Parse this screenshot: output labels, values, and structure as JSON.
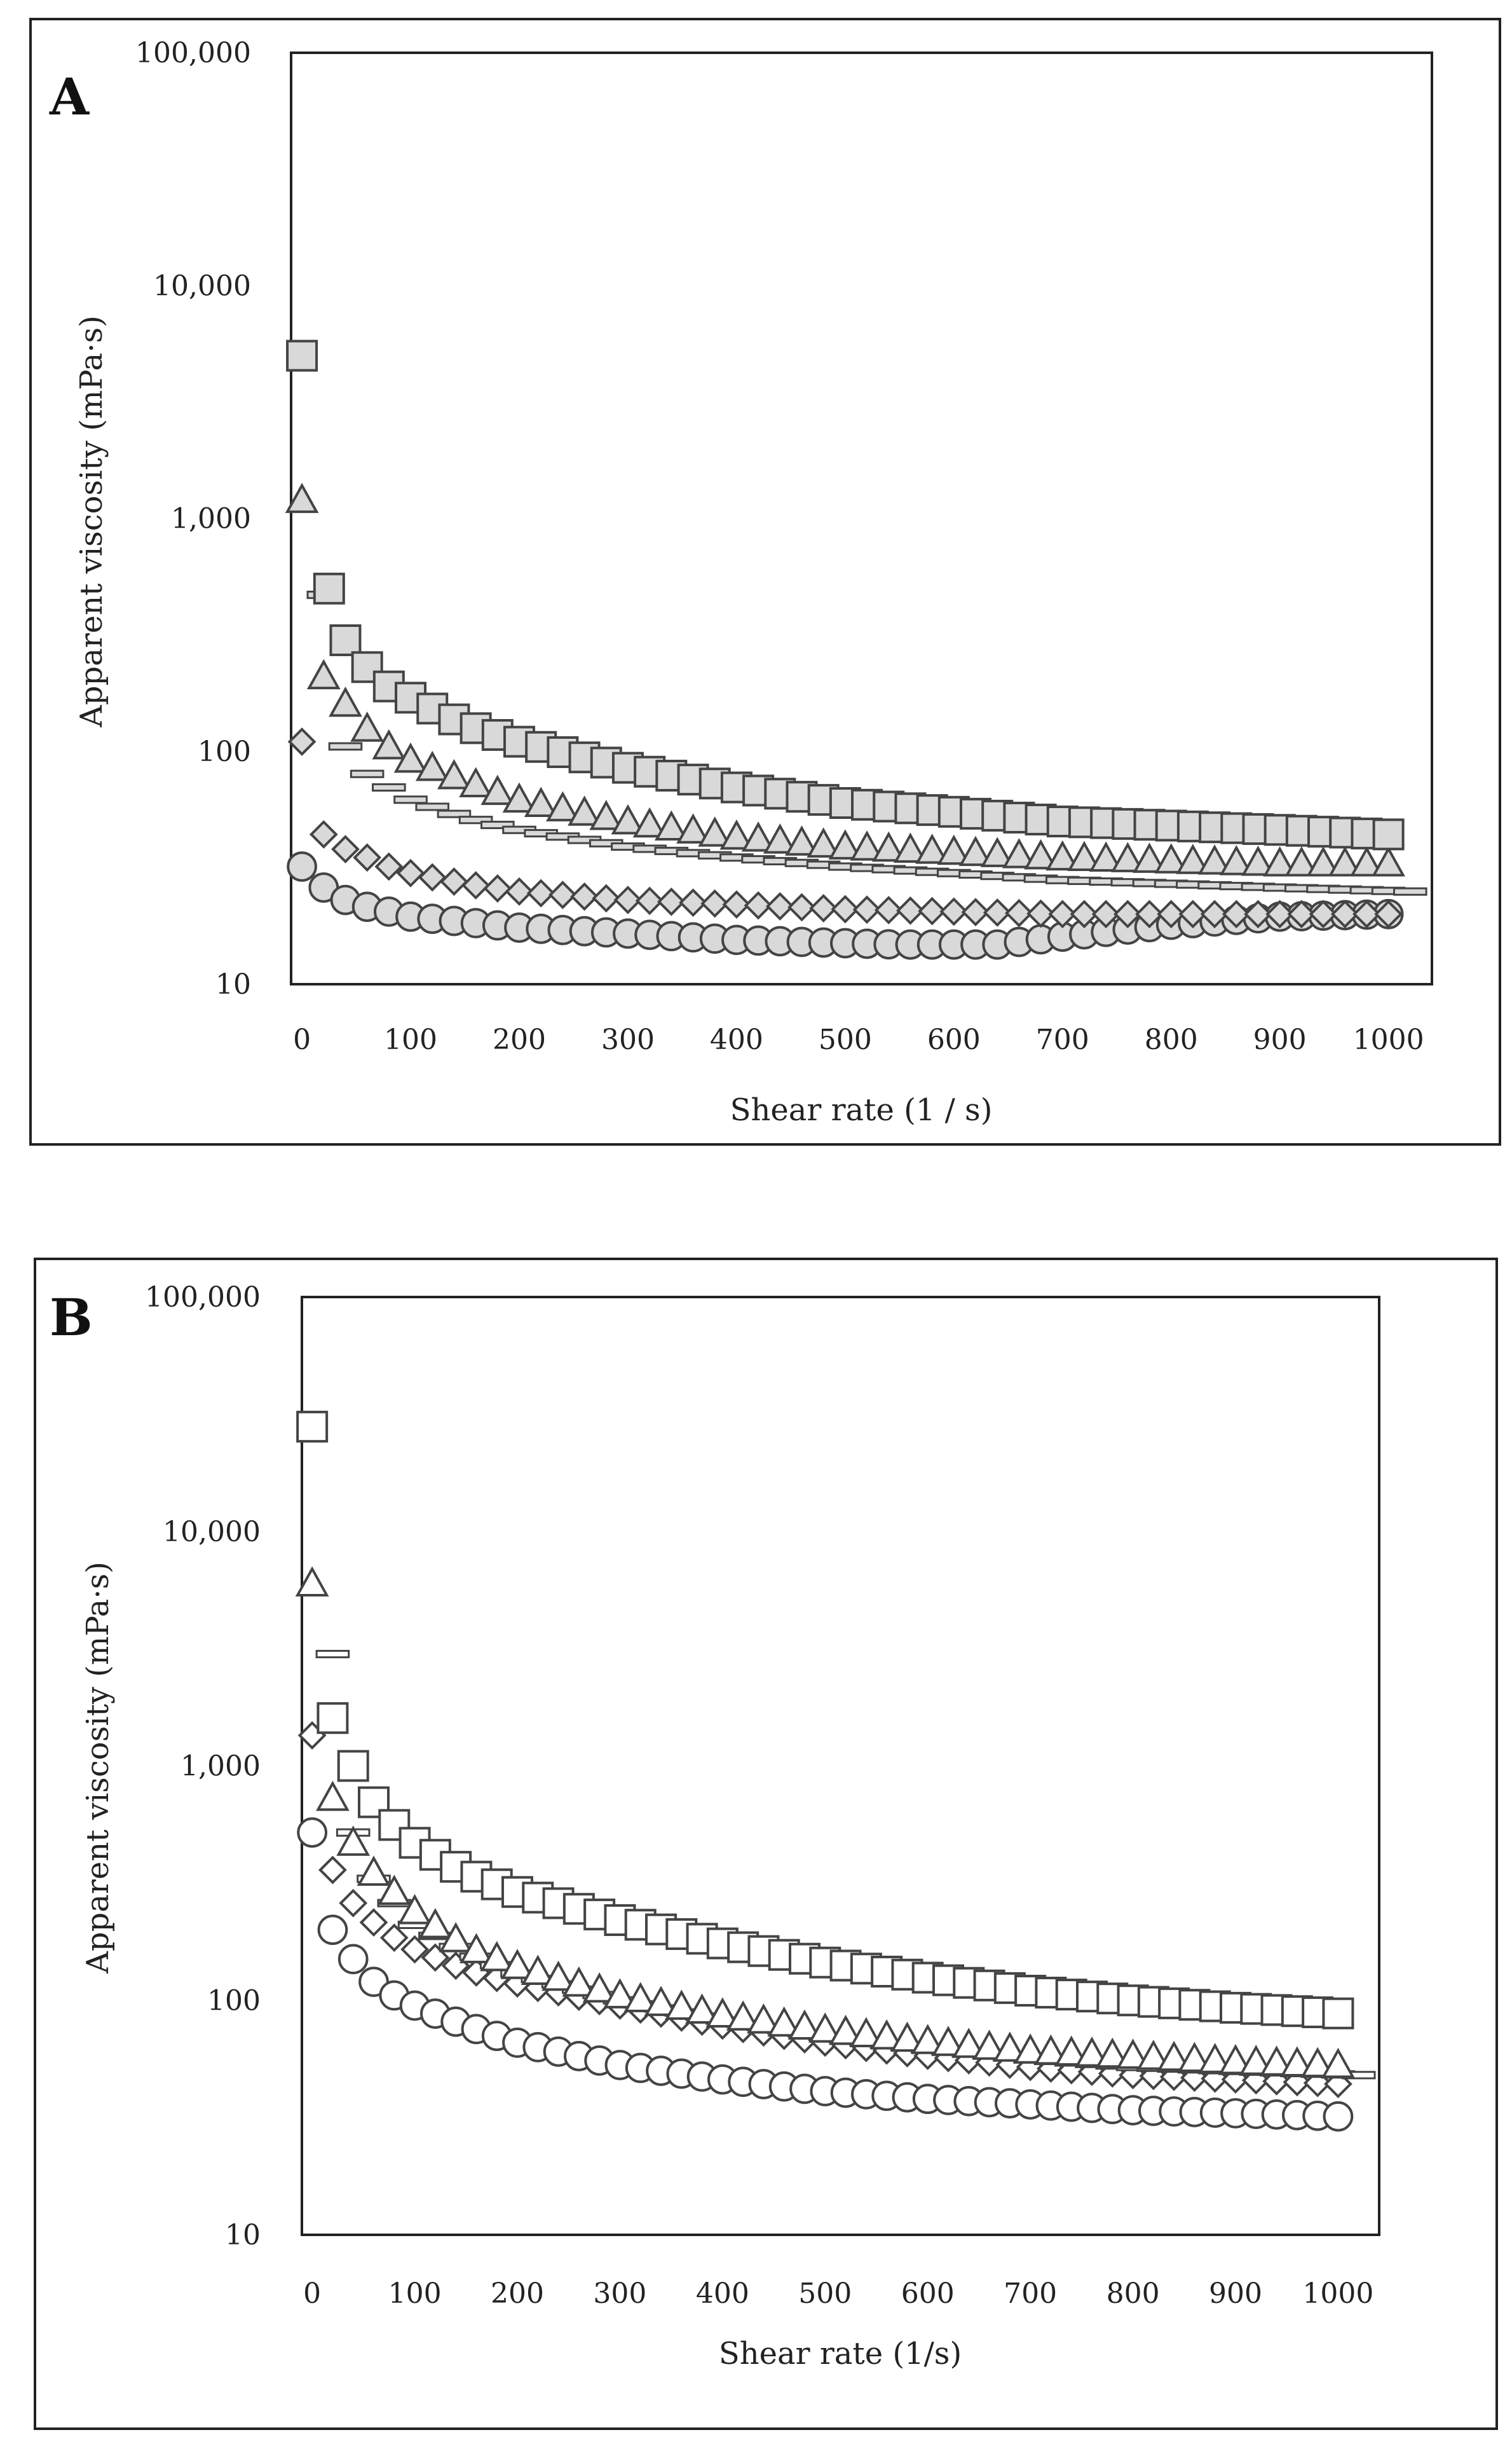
{
  "chart_data": [
    {
      "type": "scatter",
      "panel_label": "A",
      "xlabel": "Shear rate (1 / s)",
      "ylabel": "Apparent viscosity (mPa·s)",
      "y_scale": "log",
      "xlim": [
        -10,
        1040
      ],
      "ylim": [
        10,
        100000
      ],
      "x_ticks": [
        "0",
        "100",
        "200",
        "300",
        "400",
        "500",
        "600",
        "700",
        "800",
        "900",
        "1000"
      ],
      "y_ticks": [
        "10",
        "100",
        "1,000",
        "10,000",
        "100,000"
      ],
      "grid": false,
      "marker_fill": "#d9d9d9",
      "series": [
        {
          "name": "square",
          "marker": "square",
          "x_step": 20,
          "x": [
            0,
            25
          ],
          "y": [
            5000,
            500
          ],
          "curve": {
            "x": [
              40,
              60,
              80,
              100,
              150,
              200,
              300,
              400,
              500,
              600,
              700,
              800,
              900,
              1000
            ],
            "y": [
              300,
              230,
              190,
              170,
              130,
              110,
              85,
              70,
              60,
              55,
              50,
              48,
              46,
              44
            ]
          }
        },
        {
          "name": "triangle",
          "marker": "triangle",
          "x_step": 20,
          "x": [
            0
          ],
          "y": [
            1200
          ],
          "curve": {
            "x": [
              20,
              40,
              60,
              80,
              100,
              150,
              200,
              300,
              400,
              500,
              600,
              700,
              800,
              900,
              1000
            ],
            "y": [
              210,
              160,
              125,
              105,
              92,
              75,
              62,
              50,
              43,
              39,
              37,
              35,
              34,
              33,
              33
            ]
          }
        },
        {
          "name": "dash",
          "marker": "dash",
          "x_step": 20,
          "x": [
            20,
            40
          ],
          "y": [
            470,
            105
          ],
          "curve": {
            "x": [
              60,
              80,
              100,
              150,
              200,
              300,
              400,
              500,
              600,
              700,
              800,
              900,
              1020
            ],
            "y": [
              80,
              70,
              62,
              52,
              46,
              39,
              35,
              32,
              30,
              28,
              27,
              26,
              25
            ]
          }
        },
        {
          "name": "diamond",
          "marker": "diamond",
          "x_step": 20,
          "x": [
            0
          ],
          "y": [
            110
          ],
          "curve": {
            "x": [
              20,
              40,
              60,
              80,
              100,
              150,
              200,
              300,
              400,
              500,
              600,
              700,
              800,
              900,
              1000
            ],
            "y": [
              44,
              38,
              35,
              32,
              30,
              27,
              25,
              23,
              22,
              21,
              20.5,
              20,
              20,
              20,
              20
            ]
          }
        },
        {
          "name": "circle",
          "marker": "circle",
          "x_step": 20,
          "x": [
            0
          ],
          "y": [
            32
          ],
          "curve": {
            "x": [
              20,
              40,
              60,
              80,
              100,
              150,
              200,
              300,
              400,
              500,
              550,
              600,
              640,
              700,
              800,
              900,
              1000
            ],
            "y": [
              26,
              23,
              21.5,
              20.5,
              19.5,
              18.5,
              17.5,
              16.5,
              15.5,
              15,
              14.8,
              14.8,
              14.8,
              16,
              18,
              19.5,
              20
            ]
          }
        }
      ]
    },
    {
      "type": "scatter",
      "panel_label": "B",
      "xlabel": "Shear rate (1/s)",
      "ylabel": "Apparent viscosity (mPa·s)",
      "y_scale": "log",
      "xlim": [
        -10,
        1040
      ],
      "ylim": [
        10,
        100000
      ],
      "x_ticks": [
        "0",
        "100",
        "200",
        "300",
        "400",
        "500",
        "600",
        "700",
        "800",
        "900",
        "1000"
      ],
      "y_ticks": [
        "10",
        "100",
        "1,000",
        "10,000",
        "100,000"
      ],
      "grid": false,
      "marker_fill": "#ffffff",
      "series": [
        {
          "name": "square",
          "marker": "square",
          "x_step": 20,
          "x": [
            0,
            20
          ],
          "y": [
            28000,
            1600
          ],
          "curve": {
            "x": [
              40,
              60,
              80,
              100,
              150,
              200,
              300,
              400,
              500,
              600,
              700,
              800,
              900,
              1000
            ],
            "y": [
              1000,
              700,
              560,
              470,
              350,
              290,
              220,
              175,
              145,
              125,
              110,
              100,
              93,
              88
            ]
          }
        },
        {
          "name": "triangle",
          "marker": "triangle",
          "x_step": 20,
          "x": [
            0
          ],
          "y": [
            6000
          ],
          "curve": {
            "x": [
              20,
              40,
              60,
              80,
              100,
              150,
              200,
              300,
              400,
              500,
              600,
              700,
              800,
              900,
              1000
            ],
            "y": [
              730,
              470,
              350,
              290,
              240,
              170,
              140,
              105,
              87,
              75,
              67,
              61,
              58,
              55,
              53
            ]
          }
        },
        {
          "name": "dash",
          "marker": "dash",
          "x_step": 20,
          "x": [
            20
          ],
          "y": [
            3000
          ],
          "curve": {
            "x": [
              40,
              60,
              80,
              100,
              150,
              200,
              300,
              400,
              500,
              600,
              700,
              800,
              900,
              1020
            ],
            "y": [
              520,
              330,
              260,
              210,
              160,
              130,
              100,
              82,
              70,
              62,
              56,
              52,
              50,
              48
            ]
          }
        },
        {
          "name": "diamond",
          "marker": "diamond",
          "x_step": 20,
          "x": [
            0
          ],
          "y": [
            1350
          ],
          "curve": {
            "x": [
              20,
              40,
              60,
              80,
              100,
              150,
              200,
              300,
              400,
              500,
              600,
              700,
              800,
              900,
              1000
            ],
            "y": [
              360,
              260,
              215,
              185,
              165,
              135,
              118,
              95,
              78,
              66,
              58,
              52,
              48,
              46,
              44
            ]
          }
        },
        {
          "name": "circle",
          "marker": "circle",
          "x_step": 20,
          "x": [
            0
          ],
          "y": [
            520
          ],
          "curve": {
            "x": [
              20,
              40,
              60,
              80,
              100,
              150,
              200,
              300,
              400,
              500,
              600,
              700,
              800,
              900,
              1000
            ],
            "y": [
              200,
              150,
              120,
              105,
              95,
              78,
              66,
              53,
              46,
              41,
              38,
              36,
              34,
              33,
              32
            ]
          }
        }
      ]
    }
  ]
}
